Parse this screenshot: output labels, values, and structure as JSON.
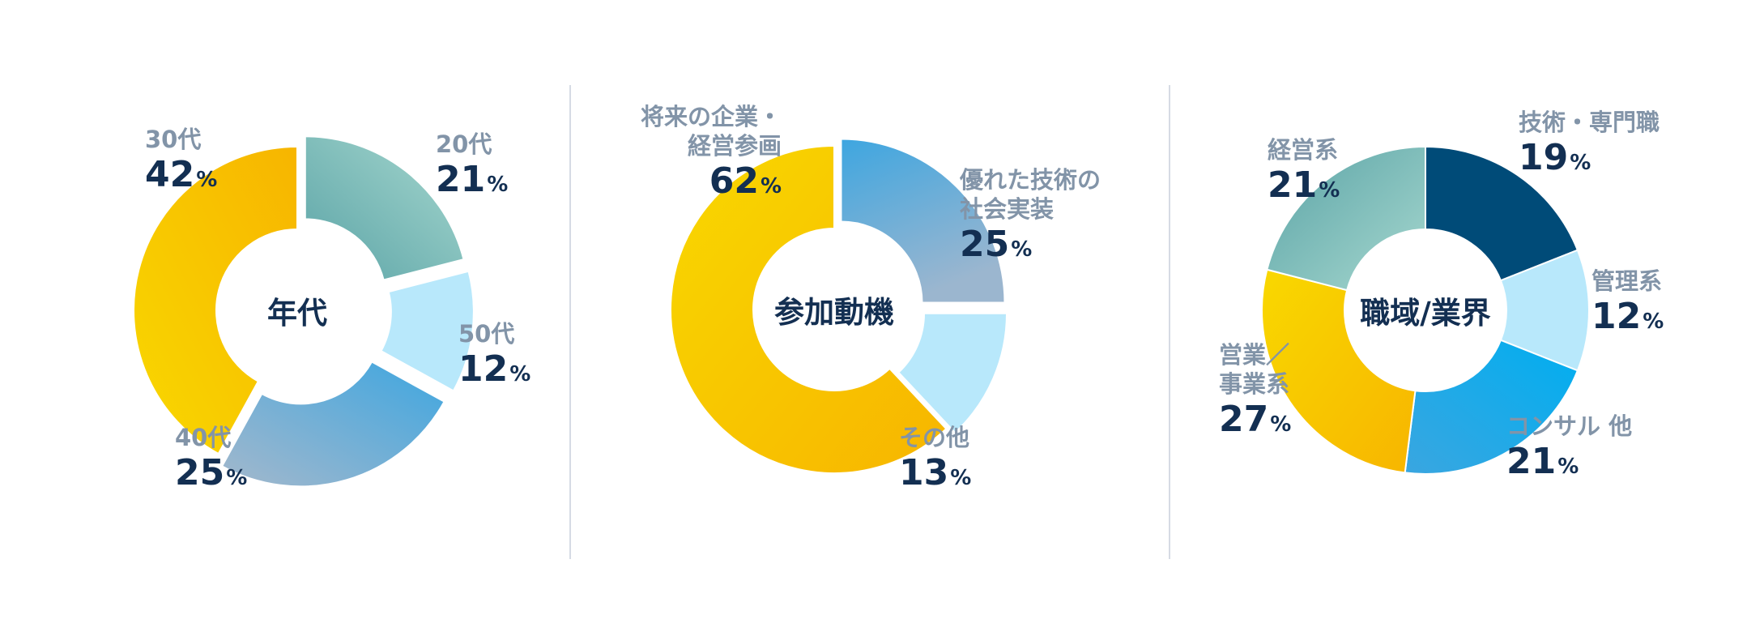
{
  "colors": {
    "gold_light": "#f9d800",
    "gold_dark": "#f7b500",
    "teal": "#5aa3a6",
    "mint": "#a7d8cf",
    "light_blue": "#b8e8fb",
    "blue": "#3ea6e0",
    "steel": "#9bb6cf",
    "navy": "#004b78",
    "cyan": "#00aef0",
    "text_dark": "#132f52",
    "text_gray": "#8294a8"
  },
  "chart_data": [
    {
      "type": "pie",
      "center_label": "年代",
      "slices": [
        {
          "label": "20代",
          "value": 21
        },
        {
          "label": "50代",
          "value": 12
        },
        {
          "label": "40代",
          "value": 25
        },
        {
          "label": "30代",
          "value": 42
        }
      ],
      "unit": "%"
    },
    {
      "type": "pie",
      "center_label": "参加動機",
      "slices": [
        {
          "label": "優れた技術の\n社会実装",
          "value": 25
        },
        {
          "label": "その他",
          "value": 13
        },
        {
          "label": "将来の企業・\n経営参画",
          "value": 62
        }
      ],
      "unit": "%"
    },
    {
      "type": "pie",
      "center_label": "職域/業界",
      "slices": [
        {
          "label": "技術・専門職",
          "value": 19
        },
        {
          "label": "管理系",
          "value": 12
        },
        {
          "label": "コンサル 他",
          "value": 21
        },
        {
          "label": "営業／\n事業系",
          "value": 27
        },
        {
          "label": "経営系",
          "value": 21
        }
      ],
      "unit": "%"
    }
  ]
}
